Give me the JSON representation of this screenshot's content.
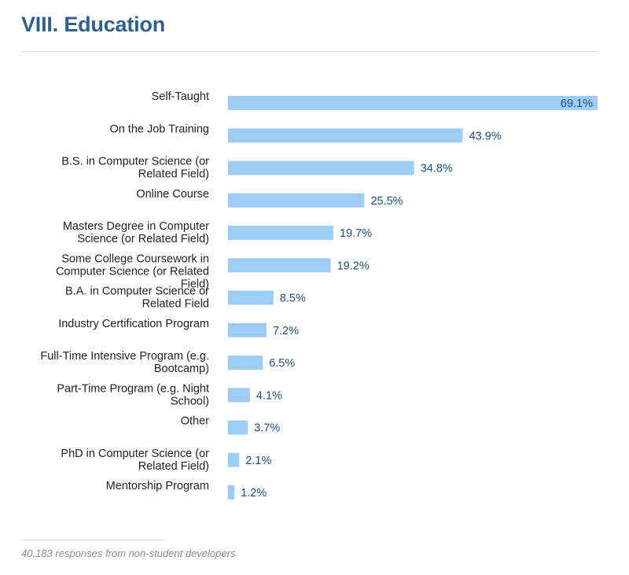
{
  "header": {
    "title": "VIII. Education"
  },
  "chart_data": {
    "type": "bar",
    "orientation": "horizontal",
    "title": "VIII. Education",
    "xlabel": "",
    "ylabel": "",
    "value_suffix": "%",
    "xlim": [
      0,
      69.1
    ],
    "grid": false,
    "legend": null,
    "categories": [
      [
        "Self-Taught"
      ],
      [
        "On the Job Training"
      ],
      [
        "B.S. in Computer Science (or",
        "Related Field)"
      ],
      [
        "Online Course"
      ],
      [
        "Masters Degree in Computer",
        "Science (or Related Field)"
      ],
      [
        "Some College Coursework in",
        "Computer Science (or Related",
        "Field)"
      ],
      [
        "B.A. in Computer Science or",
        "Related Field"
      ],
      [
        "Industry Certification Program"
      ],
      [
        "Full-Time Intensive Program (e.g.",
        "Bootcamp)"
      ],
      [
        "Part-Time Program (e.g. Night",
        "School)"
      ],
      [
        "Other"
      ],
      [
        "PhD in Computer Science (or",
        "Related Field)"
      ],
      [
        "Mentorship Program"
      ]
    ],
    "values": [
      69.1,
      43.9,
      34.8,
      25.5,
      19.7,
      19.2,
      8.5,
      7.2,
      6.5,
      4.1,
      3.7,
      2.1,
      1.2
    ],
    "value_labels": [
      "69.1%",
      "43.9%",
      "34.8%",
      "25.5%",
      "19.7%",
      "19.2%",
      "8.5%",
      "7.2%",
      "6.5%",
      "4.1%",
      "3.7%",
      "2.1%",
      "1.2%"
    ],
    "colors": {
      "bar": "#9dcdf5",
      "value_text": "#1d4f7f",
      "label_text": "#222222"
    }
  },
  "footnote": {
    "text": "40,183 responses from non-student developers"
  },
  "colors": {
    "title": "#2f6190",
    "rule": "#dcdcdc",
    "footnote": "#8c8c8c"
  }
}
